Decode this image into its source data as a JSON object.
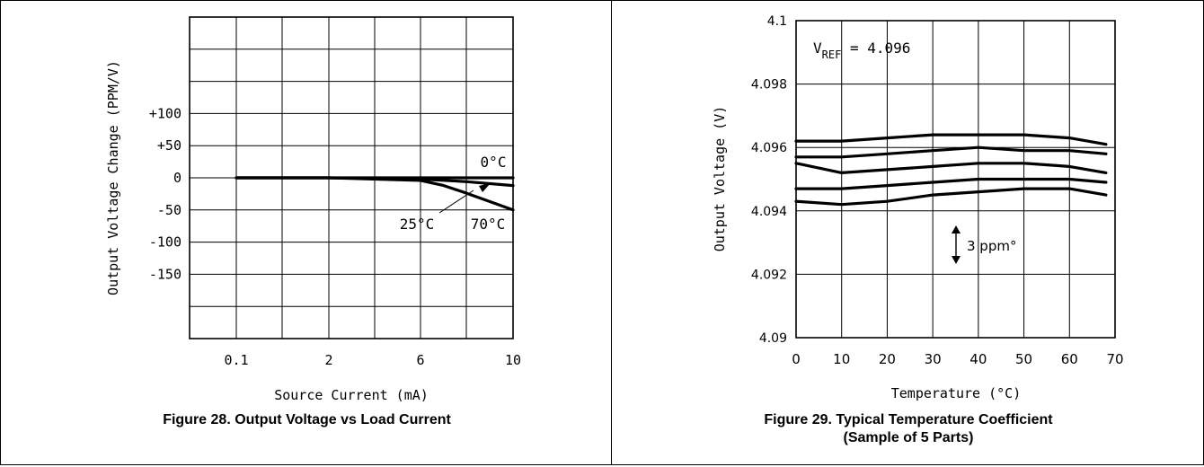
{
  "chart_data": [
    {
      "type": "line",
      "caption": "Figure 28. Output Voltage vs Load Current",
      "xlabel": "Source Current (mA)",
      "ylabel": "Output Voltage Change (PPM/V)",
      "x_ticks": [
        "0.1",
        "2",
        "6",
        "10"
      ],
      "y_ticks": [
        "+100",
        "+50",
        "0",
        "-50",
        "-100",
        "-150"
      ],
      "ylim": [
        -250,
        250
      ],
      "grid": true,
      "series": [
        {
          "name": "0°C",
          "x": [
            0.1,
            2,
            6,
            8,
            10
          ],
          "y": [
            0,
            0,
            0,
            0,
            0
          ]
        },
        {
          "name": "25°C",
          "x": [
            0.1,
            2,
            6,
            8,
            10
          ],
          "y": [
            0,
            0,
            -2,
            -6,
            -12
          ]
        },
        {
          "name": "70°C",
          "x": [
            0.1,
            2,
            6,
            7,
            8,
            9,
            10
          ],
          "y": [
            0,
            0,
            -4,
            -12,
            -24,
            -37,
            -50
          ]
        }
      ]
    },
    {
      "type": "line",
      "caption_lines": [
        "Figure 29. Typical Temperature Coefficient",
        "(Sample of 5 Parts)"
      ],
      "xlabel": "Temperature (°C)",
      "ylabel": "Output Voltage (V)",
      "x_ticks": [
        "0",
        "10",
        "20",
        "30",
        "40",
        "50",
        "60",
        "70"
      ],
      "y_ticks": [
        "4.1",
        "4.098",
        "4.096",
        "4.094",
        "4.092",
        "4.09"
      ],
      "xlim": [
        0,
        70
      ],
      "ylim": [
        4.09,
        4.1
      ],
      "grid": true,
      "annotation_vref": {
        "base": "V",
        "sub": "REF",
        "rest": " = 4.096"
      },
      "annotation_scale": "3 ppm°",
      "series": [
        {
          "x": [
            0,
            10,
            20,
            30,
            40,
            50,
            60,
            68
          ],
          "y": [
            4.0962,
            4.0962,
            4.0963,
            4.0964,
            4.0964,
            4.0964,
            4.0963,
            4.0961
          ]
        },
        {
          "x": [
            0,
            10,
            20,
            30,
            40,
            50,
            60,
            68
          ],
          "y": [
            4.0957,
            4.0957,
            4.0958,
            4.0959,
            4.096,
            4.0959,
            4.0959,
            4.0958
          ]
        },
        {
          "x": [
            0,
            10,
            20,
            30,
            40,
            50,
            60,
            68
          ],
          "y": [
            4.0955,
            4.0952,
            4.0953,
            4.0954,
            4.0955,
            4.0955,
            4.0954,
            4.0952
          ]
        },
        {
          "x": [
            0,
            10,
            20,
            30,
            40,
            50,
            60,
            68
          ],
          "y": [
            4.0947,
            4.0947,
            4.0948,
            4.0949,
            4.095,
            4.095,
            4.095,
            4.0949
          ]
        },
        {
          "x": [
            0,
            10,
            20,
            30,
            40,
            50,
            60,
            68
          ],
          "y": [
            4.0943,
            4.0942,
            4.0943,
            4.0945,
            4.0946,
            4.0947,
            4.0947,
            4.0945
          ]
        }
      ]
    }
  ]
}
